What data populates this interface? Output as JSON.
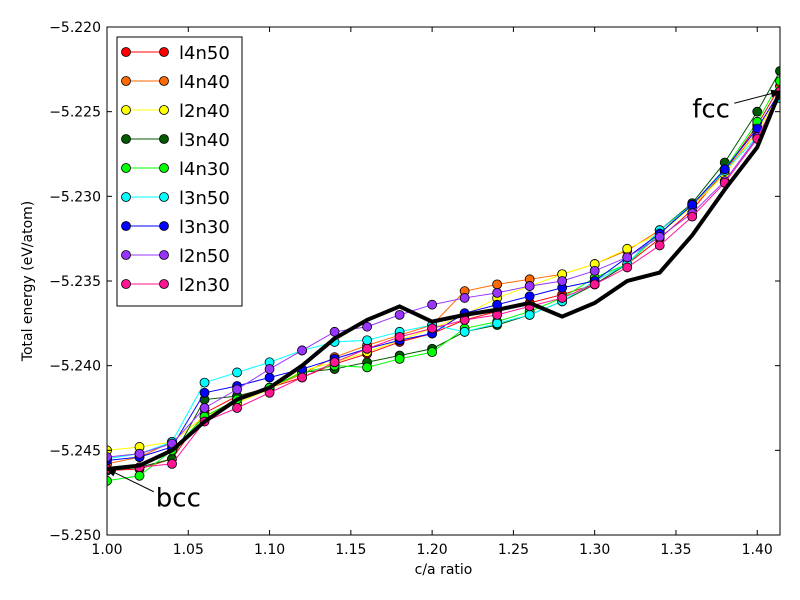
{
  "chart_data": {
    "type": "line",
    "xlabel": "c/a ratio",
    "ylabel": "Total energy (eV/atom)",
    "xlim": [
      1.0,
      1.414
    ],
    "ylim": [
      -5.25,
      -5.22
    ],
    "x_ticks": [
      "1.00",
      "1.05",
      "1.10",
      "1.15",
      "1.20",
      "1.25",
      "1.30",
      "1.35",
      "1.40"
    ],
    "y_ticks": [
      "−5.250",
      "−5.245",
      "−5.240",
      "−5.235",
      "−5.230",
      "−5.225",
      "−5.220"
    ],
    "grid": false,
    "legend_position": "top-left",
    "x": [
      1.0,
      1.02,
      1.04,
      1.06,
      1.08,
      1.1,
      1.12,
      1.14,
      1.16,
      1.18,
      1.2,
      1.22,
      1.24,
      1.26,
      1.28,
      1.3,
      1.32,
      1.34,
      1.36,
      1.38,
      1.4,
      1.414
    ],
    "series": [
      {
        "name": "l4n50",
        "color": "#ff0000",
        "values": [
          -5.2462,
          -5.2461,
          -5.2455,
          -5.2428,
          -5.2418,
          -5.2413,
          -5.2407,
          -5.2399,
          -5.2393,
          -5.2386,
          -5.2381,
          -5.2373,
          -5.2368,
          -5.2363,
          -5.2358,
          -5.2352,
          -5.234,
          -5.2325,
          -5.2308,
          -5.2285,
          -5.2258,
          -5.2235
        ]
      },
      {
        "name": "l4n40",
        "color": "#ff6a00",
        "values": [
          -5.2458,
          -5.2454,
          -5.2445,
          -5.243,
          -5.242,
          -5.2413,
          -5.2405,
          -5.2395,
          -5.2388,
          -5.2382,
          -5.2376,
          -5.2356,
          -5.2352,
          -5.2349,
          -5.2346,
          -5.234,
          -5.2332,
          -5.232,
          -5.2306,
          -5.2285,
          -5.2262,
          -5.2238
        ]
      },
      {
        "name": "l2n40",
        "color": "#ffff00",
        "values": [
          -5.245,
          -5.2448,
          -5.2445,
          -5.243,
          -5.2422,
          -5.2414,
          -5.2403,
          -5.2398,
          -5.2392,
          -5.2385,
          -5.2378,
          -5.237,
          -5.236,
          -5.2353,
          -5.2346,
          -5.234,
          -5.2331,
          -5.2322,
          -5.2306,
          -5.2287,
          -5.2262,
          -5.2238
        ]
      },
      {
        "name": "l3n40",
        "color": "#005a00",
        "values": [
          -5.2462,
          -5.246,
          -5.2455,
          -5.242,
          -5.2418,
          -5.2413,
          -5.2404,
          -5.2402,
          -5.2398,
          -5.2394,
          -5.239,
          -5.238,
          -5.2376,
          -5.237,
          -5.2362,
          -5.2352,
          -5.234,
          -5.232,
          -5.2304,
          -5.228,
          -5.225,
          -5.2226
        ]
      },
      {
        "name": "l4n30",
        "color": "#00ff00",
        "values": [
          -5.2468,
          -5.2465,
          -5.245,
          -5.243,
          -5.242,
          -5.2413,
          -5.2404,
          -5.24,
          -5.2401,
          -5.2396,
          -5.2392,
          -5.2378,
          -5.2374,
          -5.2368,
          -5.236,
          -5.2348,
          -5.234,
          -5.2322,
          -5.2305,
          -5.2284,
          -5.2256,
          -5.2232
        ]
      },
      {
        "name": "l3n50",
        "color": "#00ffff",
        "values": [
          -5.2455,
          -5.2452,
          -5.2445,
          -5.241,
          -5.2404,
          -5.2398,
          -5.2391,
          -5.2386,
          -5.2385,
          -5.238,
          -5.2376,
          -5.238,
          -5.2375,
          -5.237,
          -5.2362,
          -5.235,
          -5.234,
          -5.232,
          -5.2305,
          -5.2285,
          -5.2265,
          -5.2242
        ]
      },
      {
        "name": "l3n30",
        "color": "#0000ff",
        "values": [
          -5.2456,
          -5.2454,
          -5.2448,
          -5.2416,
          -5.2412,
          -5.2407,
          -5.2402,
          -5.2396,
          -5.239,
          -5.2385,
          -5.2381,
          -5.2369,
          -5.2364,
          -5.2359,
          -5.2354,
          -5.235,
          -5.2336,
          -5.2322,
          -5.2305,
          -5.2284,
          -5.226,
          -5.2238
        ]
      },
      {
        "name": "l2n50",
        "color": "#9933ff",
        "values": [
          -5.2454,
          -5.2452,
          -5.2446,
          -5.2425,
          -5.2414,
          -5.2402,
          -5.2391,
          -5.238,
          -5.2377,
          -5.237,
          -5.2364,
          -5.236,
          -5.2357,
          -5.2353,
          -5.235,
          -5.2344,
          -5.2336,
          -5.2324,
          -5.231,
          -5.2291,
          -5.2265,
          -5.224
        ]
      },
      {
        "name": "l2n30",
        "color": "#ff1493",
        "values": [
          -5.2461,
          -5.246,
          -5.2458,
          -5.2433,
          -5.2425,
          -5.2416,
          -5.2407,
          -5.2398,
          -5.239,
          -5.2383,
          -5.2378,
          -5.2373,
          -5.237,
          -5.2365,
          -5.236,
          -5.2352,
          -5.2342,
          -5.2329,
          -5.2312,
          -5.2292,
          -5.2266,
          -5.2238
        ]
      }
    ],
    "reference_line": {
      "color": "#000000",
      "x": [
        1.0,
        1.02,
        1.04,
        1.06,
        1.08,
        1.1,
        1.12,
        1.14,
        1.16,
        1.18,
        1.2,
        1.22,
        1.24,
        1.26,
        1.28,
        1.3,
        1.32,
        1.34,
        1.36,
        1.38,
        1.4,
        1.414
      ],
      "values": [
        -5.2461,
        -5.2459,
        -5.245,
        -5.2433,
        -5.242,
        -5.2413,
        -5.24,
        -5.2384,
        -5.2373,
        -5.2365,
        -5.2374,
        -5.237,
        -5.2367,
        -5.2363,
        -5.2371,
        -5.2363,
        -5.235,
        -5.2345,
        -5.2323,
        -5.2296,
        -5.2271,
        -5.2238
      ]
    },
    "annotations": [
      {
        "text": "bcc",
        "x": 1.0,
        "y": -5.2461,
        "text_x": 1.03,
        "text_y": -5.2478
      },
      {
        "text": "fcc",
        "x": 1.414,
        "y": -5.2238,
        "text_x": 1.36,
        "text_y": -5.2248
      }
    ]
  }
}
